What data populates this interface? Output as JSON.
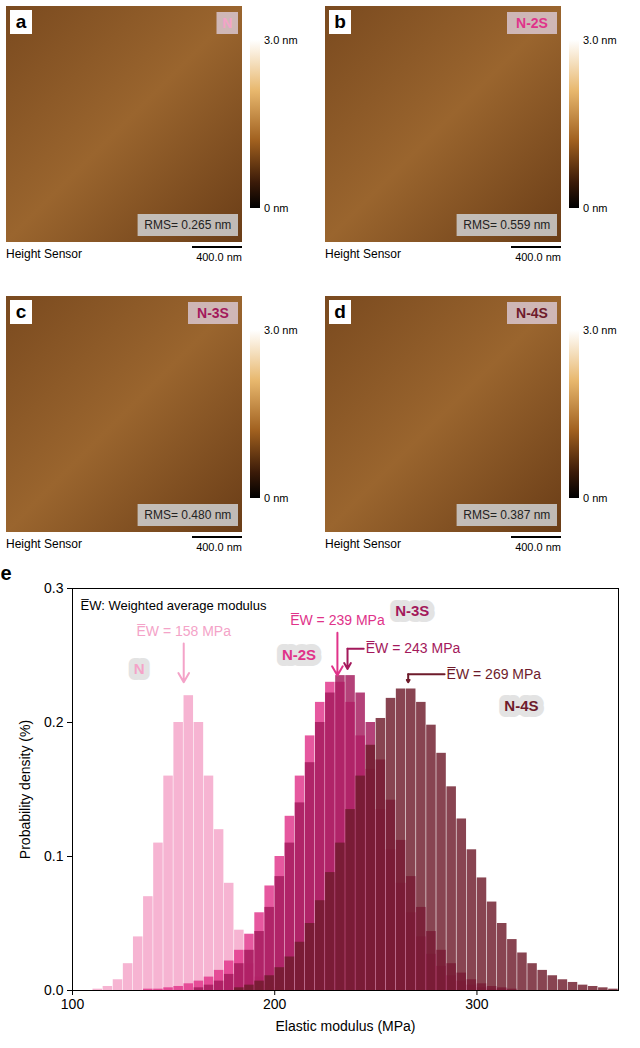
{
  "panels": [
    {
      "letter": "a",
      "sample": "N",
      "rms": "RMS= 0.265 nm"
    },
    {
      "letter": "b",
      "sample": "N-2S",
      "rms": "RMS= 0.559 nm"
    },
    {
      "letter": "c",
      "sample": "N-3S",
      "rms": "RMS= 0.480 nm"
    },
    {
      "letter": "d",
      "sample": "N-4S",
      "rms": "RMS= 0.387 nm"
    }
  ],
  "image_caption": "Height Sensor",
  "scale_bar": "400.0 nm",
  "colorbar": {
    "range": [
      0,
      3
    ],
    "ticks": [
      {
        "value": 0,
        "label": "0 nm"
      },
      {
        "value": 3,
        "label": "3.0 nm"
      }
    ]
  },
  "chart_data": {
    "type": "histogram",
    "letter": "e",
    "note": "E̅W: Weighted average modulus",
    "x_label": "Elastic modulus (MPa)",
    "y_label": "Probability density (%)",
    "xlim": [
      100,
      370
    ],
    "ylim": [
      0,
      0.3
    ],
    "xticks": [
      100,
      200,
      300
    ],
    "yticks": [
      {
        "value": 0,
        "label": "0.0"
      },
      0.1,
      0.2,
      0.3
    ],
    "grid": false,
    "bins": [
      100,
      105,
      110,
      115,
      120,
      125,
      130,
      135,
      140,
      145,
      150,
      155,
      160,
      165,
      170,
      175,
      180,
      185,
      190,
      195,
      200,
      205,
      210,
      215,
      220,
      225,
      230,
      235,
      240,
      245,
      250,
      255,
      260,
      265,
      270,
      275,
      280,
      285,
      290,
      295,
      300,
      305,
      310,
      315,
      320,
      325,
      330,
      335,
      340,
      345,
      350,
      355,
      360,
      365,
      370
    ],
    "series": [
      {
        "name": "N",
        "color": "#f4a3c8",
        "annotation": {
          "text": "E̅W = 158 MPa",
          "x": 155,
          "y": 0.228
        },
        "values": [
          0,
          0,
          0.001,
          0.003,
          0.008,
          0.02,
          0.04,
          0.07,
          0.11,
          0.16,
          0.2,
          0.22,
          0.2,
          0.16,
          0.12,
          0.08,
          0.045,
          0.02,
          0.01,
          0.004,
          0.002,
          0.001,
          0,
          0,
          0,
          0,
          0,
          0,
          0,
          0,
          0,
          0,
          0,
          0,
          0,
          0,
          0,
          0,
          0,
          0,
          0,
          0,
          0,
          0,
          0,
          0,
          0,
          0,
          0,
          0,
          0,
          0,
          0,
          0
        ]
      },
      {
        "name": "N-2S",
        "color": "#e0338a",
        "annotation": {
          "text": "E̅W = 239 MPa",
          "x": 231,
          "y": 0.233
        },
        "values": [
          0,
          0,
          0,
          0,
          0,
          0,
          0,
          0.001,
          0.001,
          0.002,
          0.003,
          0.005,
          0.007,
          0.01,
          0.015,
          0.022,
          0.03,
          0.042,
          0.058,
          0.078,
          0.1,
          0.13,
          0.16,
          0.19,
          0.215,
          0.23,
          0.23,
          0.215,
          0.19,
          0.165,
          0.135,
          0.105,
          0.08,
          0.058,
          0.04,
          0.027,
          0.018,
          0.011,
          0.007,
          0.004,
          0.002,
          0.001,
          0.001,
          0,
          0,
          0,
          0,
          0,
          0,
          0,
          0,
          0,
          0,
          0
        ]
      },
      {
        "name": "N-3S",
        "color": "#a3195b",
        "annotation": {
          "text": "E̅W = 243 MPa",
          "x": 236,
          "y": 0.238
        },
        "values": [
          0,
          0,
          0,
          0,
          0,
          0,
          0,
          0,
          0,
          0,
          0,
          0,
          0.002,
          0.004,
          0.007,
          0.012,
          0.02,
          0.03,
          0.044,
          0.062,
          0.085,
          0.11,
          0.14,
          0.17,
          0.2,
          0.222,
          0.235,
          0.235,
          0.222,
          0.2,
          0.172,
          0.142,
          0.112,
          0.085,
          0.062,
          0.044,
          0.03,
          0.02,
          0.013,
          0.008,
          0.005,
          0.003,
          0.002,
          0.001,
          0,
          0,
          0,
          0,
          0,
          0,
          0,
          0,
          0,
          0
        ]
      },
      {
        "name": "N-4S",
        "color": "#6e1b2b",
        "annotation": {
          "text": "E̅W = 269 MPa",
          "x": 266,
          "y": 0.228
        },
        "values": [
          0,
          0,
          0,
          0,
          0,
          0,
          0,
          0,
          0,
          0,
          0,
          0,
          0,
          0,
          0,
          0,
          0.002,
          0.004,
          0.007,
          0.011,
          0.017,
          0.025,
          0.036,
          0.05,
          0.067,
          0.088,
          0.11,
          0.135,
          0.16,
          0.183,
          0.203,
          0.218,
          0.225,
          0.225,
          0.215,
          0.198,
          0.177,
          0.152,
          0.128,
          0.105,
          0.084,
          0.066,
          0.05,
          0.038,
          0.028,
          0.02,
          0.015,
          0.011,
          0.008,
          0.006,
          0.004,
          0.003,
          0.002,
          0.001
        ]
      }
    ]
  }
}
